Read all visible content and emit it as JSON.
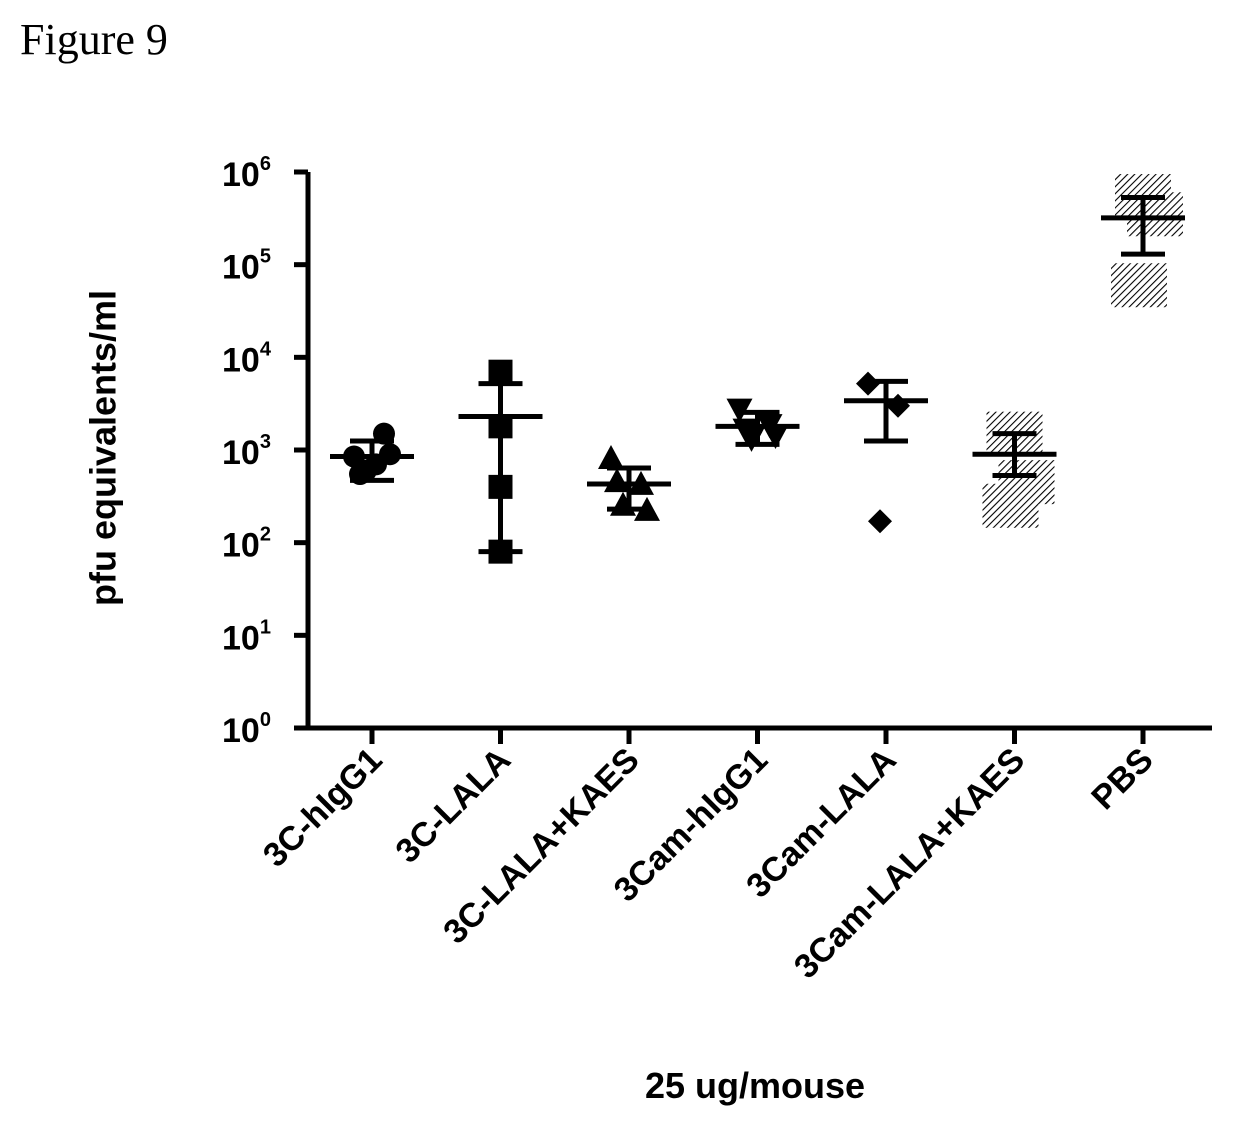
{
  "figure": {
    "caption": "Figure 9"
  },
  "chart_data": {
    "type": "scatter",
    "title": "",
    "xlabel": "25 ug/mouse",
    "ylabel": "pfu equivalents/ml",
    "yscale": "log",
    "ylim": [
      1,
      1000000
    ],
    "y_tick_labels": [
      {
        "base": "10",
        "exp": "6",
        "value": 1000000
      },
      {
        "base": "10",
        "exp": "5",
        "value": 100000
      },
      {
        "base": "10",
        "exp": "4",
        "value": 10000
      },
      {
        "base": "10",
        "exp": "3",
        "value": 1000
      },
      {
        "base": "10",
        "exp": "2",
        "value": 100
      },
      {
        "base": "10",
        "exp": "1",
        "value": 10
      },
      {
        "base": "10",
        "exp": "0",
        "value": 1
      }
    ],
    "categories": [
      "3C-hIgG1",
      "3C-LALA",
      "3C-LALA+KAES",
      "3Cam-hIgG1",
      "3Cam-LALA",
      "3Cam-LALA+KAES",
      "PBS"
    ],
    "series": [
      {
        "category": "3C-hIgG1",
        "marker": "circle",
        "points": [
          850,
          1500,
          600,
          900,
          550,
          700
        ],
        "mean": 850,
        "error_low": 470,
        "error_high": 1250
      },
      {
        "category": "3C-LALA",
        "marker": "square",
        "points": [
          7000,
          1800,
          400,
          80
        ],
        "mean": 2300,
        "error_low": 80,
        "error_high": 5200
      },
      {
        "category": "3C-LALA+KAES",
        "marker": "triangle-up",
        "points": [
          800,
          420,
          250,
          220,
          450
        ],
        "mean": 430,
        "error_low": 230,
        "error_high": 640
      },
      {
        "category": "3Cam-hIgG1",
        "marker": "triangle-down",
        "points": [
          2800,
          1900,
          1350,
          1450,
          1700
        ],
        "mean": 1800,
        "error_low": 1150,
        "error_high": 2550
      },
      {
        "category": "3Cam-LALA",
        "marker": "diamond",
        "points": [
          5200,
          3000,
          170
        ],
        "mean": 3400,
        "error_low": 1250,
        "error_high": 5500
      },
      {
        "category": "3Cam-LALA+KAES",
        "marker": "square-shaded",
        "points": [
          1500,
          450,
          250
        ],
        "mean": 900,
        "error_low": 530,
        "error_high": 1500
      },
      {
        "category": "PBS",
        "marker": "square-shaded",
        "points": [
          550000,
          350000,
          60000
        ],
        "mean": 320000,
        "error_low": 130000,
        "error_high": 530000
      }
    ],
    "grid": false,
    "legend": "none"
  }
}
